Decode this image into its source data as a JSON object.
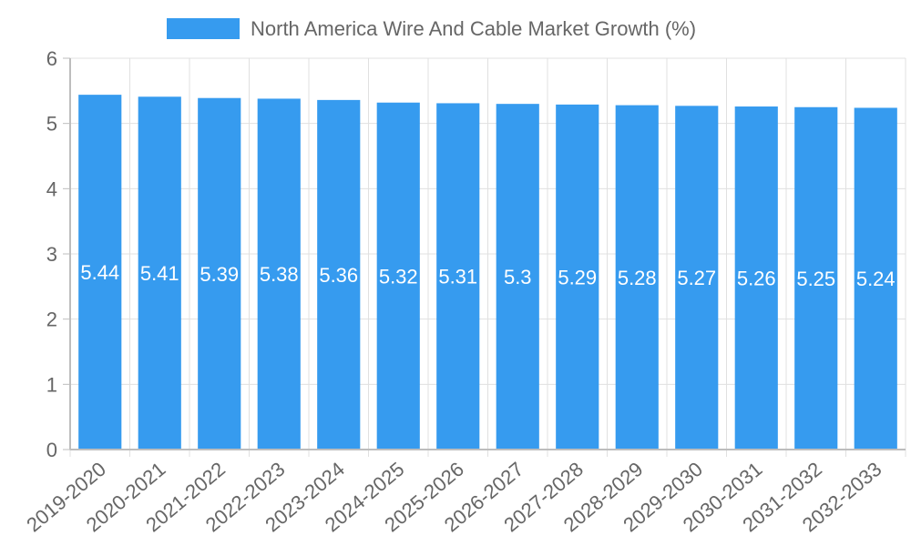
{
  "chart_data": {
    "type": "bar",
    "categories": [
      "2019-2020",
      "2020-2021",
      "2021-2022",
      "2022-2023",
      "2023-2024",
      "2024-2025",
      "2025-2026",
      "2026-2027",
      "2027-2028",
      "2028-2029",
      "2029-2030",
      "2030-2031",
      "2031-2032",
      "2032-2033"
    ],
    "series": [
      {
        "name": "North America Wire And Cable Market Growth (%)",
        "values": [
          5.44,
          5.41,
          5.39,
          5.38,
          5.36,
          5.32,
          5.31,
          5.3,
          5.29,
          5.28,
          5.27,
          5.26,
          5.25,
          5.24
        ],
        "color": "#369bef"
      }
    ],
    "title": "",
    "xlabel": "",
    "ylabel": "",
    "ylim": [
      0,
      6
    ],
    "yticks": [
      0,
      1,
      2,
      3,
      4,
      5,
      6
    ],
    "grid": true,
    "legend": "top-center",
    "data_labels": true
  }
}
